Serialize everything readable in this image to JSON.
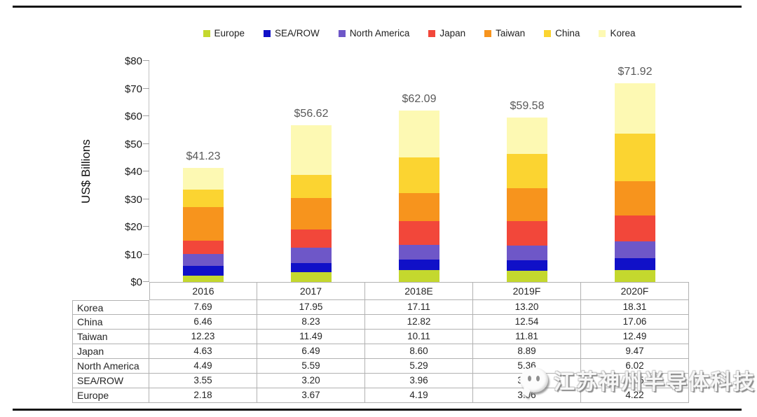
{
  "accent_colors": {
    "europe": "#c4d82e",
    "sea_row": "#1010c8",
    "north_america": "#6e57c8",
    "japan": "#f2473a",
    "taiwan": "#f7941d",
    "china": "#fbd431",
    "korea": "#fdf9b3",
    "axis_gray": "#c2c2c2",
    "table_border_gray": "#b2b2b2",
    "rule_black": "#141414"
  },
  "legend": {
    "items": [
      {
        "label": "Europe",
        "color": "#c4d82e"
      },
      {
        "label": "SEA/ROW",
        "color": "#1010c8"
      },
      {
        "label": "North America",
        "color": "#6e57c8"
      },
      {
        "label": "Japan",
        "color": "#f2473a"
      },
      {
        "label": "Taiwan",
        "color": "#f7941d"
      },
      {
        "label": "China",
        "color": "#fbd431"
      },
      {
        "label": "Korea",
        "color": "#fdf9b3"
      }
    ]
  },
  "chart_data": {
    "type": "bar",
    "stacked": true,
    "title": "",
    "xlabel": "",
    "ylabel": "US$ Billions",
    "ylim": [
      0,
      80
    ],
    "ytick_labels": [
      "$0",
      "$10",
      "$20",
      "$30",
      "$40",
      "$50",
      "$60",
      "$70",
      "$80"
    ],
    "grid": false,
    "legend_position": "top",
    "categories": [
      "2016",
      "2017",
      "2018E",
      "2019F",
      "2020F"
    ],
    "series": [
      {
        "name": "Europe",
        "color": "#c4d82e",
        "values": [
          2.18,
          3.67,
          4.19,
          3.96,
          4.22
        ]
      },
      {
        "name": "SEA/ROW",
        "color": "#1010c8",
        "values": [
          3.55,
          3.2,
          3.96,
          3.82,
          4.35
        ]
      },
      {
        "name": "North America",
        "color": "#6e57c8",
        "values": [
          4.49,
          5.59,
          5.29,
          5.36,
          6.02
        ]
      },
      {
        "name": "Japan",
        "color": "#f2473a",
        "values": [
          4.63,
          6.49,
          8.6,
          8.89,
          9.47
        ]
      },
      {
        "name": "Taiwan",
        "color": "#f7941d",
        "values": [
          12.23,
          11.49,
          10.11,
          11.81,
          12.49
        ]
      },
      {
        "name": "China",
        "color": "#fbd431",
        "values": [
          6.46,
          8.23,
          12.82,
          12.54,
          17.06
        ]
      },
      {
        "name": "Korea",
        "color": "#fdf9b3",
        "values": [
          7.69,
          17.95,
          17.11,
          13.2,
          18.31
        ]
      }
    ],
    "total_labels": [
      "$41.23",
      "$56.62",
      "$62.09",
      "$59.58",
      "$71.92"
    ]
  },
  "table": {
    "year_headers": [
      "2016",
      "2017",
      "2018E",
      "2019F",
      "2020F"
    ],
    "rows": [
      {
        "label": "Korea",
        "values": [
          "7.69",
          "17.95",
          "17.11",
          "13.20",
          "18.31"
        ]
      },
      {
        "label": "China",
        "values": [
          "6.46",
          "8.23",
          "12.82",
          "12.54",
          "17.06"
        ]
      },
      {
        "label": "Taiwan",
        "values": [
          "12.23",
          "11.49",
          "10.11",
          "11.81",
          "12.49"
        ]
      },
      {
        "label": "Japan",
        "values": [
          "4.63",
          "6.49",
          "8.60",
          "8.89",
          "9.47"
        ]
      },
      {
        "label": "North America",
        "values": [
          "4.49",
          "5.59",
          "5.29",
          "5.36",
          "6.02"
        ]
      },
      {
        "label": "SEA/ROW",
        "values": [
          "3.55",
          "3.20",
          "3.96",
          "3.82",
          "4.35"
        ]
      },
      {
        "label": "Europe",
        "values": [
          "2.18",
          "3.67",
          "4.19",
          "3.96",
          "4.22"
        ]
      }
    ]
  },
  "watermark": {
    "text": "江苏神州半导体科技"
  }
}
